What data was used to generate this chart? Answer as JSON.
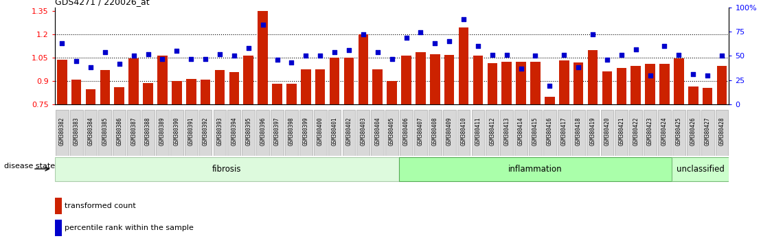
{
  "title": "GDS4271 / 220026_at",
  "samples": [
    "GSM380382",
    "GSM380383",
    "GSM380384",
    "GSM380385",
    "GSM380386",
    "GSM380387",
    "GSM380388",
    "GSM380389",
    "GSM380390",
    "GSM380391",
    "GSM380392",
    "GSM380393",
    "GSM380394",
    "GSM380395",
    "GSM380396",
    "GSM380397",
    "GSM380398",
    "GSM380399",
    "GSM380400",
    "GSM380401",
    "GSM380402",
    "GSM380403",
    "GSM380404",
    "GSM380405",
    "GSM380406",
    "GSM380407",
    "GSM380408",
    "GSM380409",
    "GSM380410",
    "GSM380411",
    "GSM380412",
    "GSM380413",
    "GSM380414",
    "GSM380415",
    "GSM380416",
    "GSM380417",
    "GSM380418",
    "GSM380419",
    "GSM380420",
    "GSM380421",
    "GSM380422",
    "GSM380423",
    "GSM380424",
    "GSM380425",
    "GSM380426",
    "GSM380427",
    "GSM380428"
  ],
  "bar_values": [
    1.04,
    0.91,
    0.85,
    0.97,
    0.86,
    1.045,
    0.89,
    1.065,
    0.9,
    0.915,
    0.91,
    0.97,
    0.96,
    1.065,
    1.35,
    0.885,
    0.885,
    0.975,
    0.975,
    1.05,
    1.05,
    1.2,
    0.975,
    0.9,
    1.065,
    1.085,
    1.075,
    1.07,
    1.245,
    1.065,
    1.015,
    1.025,
    1.025,
    1.025,
    0.8,
    1.035,
    1.02,
    1.1,
    0.965,
    0.985,
    1.0,
    1.01,
    1.01,
    1.045,
    0.865,
    0.855,
    1.0
  ],
  "percentile_values": [
    63,
    45,
    38,
    54,
    42,
    50,
    52,
    47,
    55,
    47,
    47,
    52,
    50,
    58,
    82,
    46,
    43,
    50,
    50,
    54,
    56,
    72,
    54,
    47,
    69,
    74,
    63,
    65,
    88,
    60,
    51,
    51,
    37,
    50,
    19,
    51,
    38,
    72,
    46,
    51,
    57,
    30,
    60,
    51,
    31,
    30,
    50
  ],
  "disease_groups": [
    {
      "name": "fibrosis",
      "start": 0,
      "end": 24,
      "facecolor": "#ddfadd",
      "edgecolor": "#aaccaa"
    },
    {
      "name": "inflammation",
      "start": 24,
      "end": 43,
      "facecolor": "#aaffaa",
      "edgecolor": "#55aa55"
    },
    {
      "name": "unclassified",
      "start": 43,
      "end": 47,
      "facecolor": "#ccffcc",
      "edgecolor": "#77bb77"
    }
  ],
  "bar_color": "#cc2200",
  "dot_color": "#0000cc",
  "ymin": 0.75,
  "ymax": 1.375,
  "yticks_left": [
    0.75,
    0.9,
    1.05,
    1.2,
    1.35
  ],
  "yticks_right": [
    0,
    25,
    50,
    75,
    100
  ],
  "ytick_labels_right": [
    "0",
    "25",
    "50",
    "75",
    "100%"
  ],
  "hlines": [
    0.9,
    1.05,
    1.2
  ],
  "bg_color": "#ffffff",
  "disease_state_label": "disease state",
  "legend_bar_label": "transformed count",
  "legend_dot_label": "percentile rank within the sample"
}
